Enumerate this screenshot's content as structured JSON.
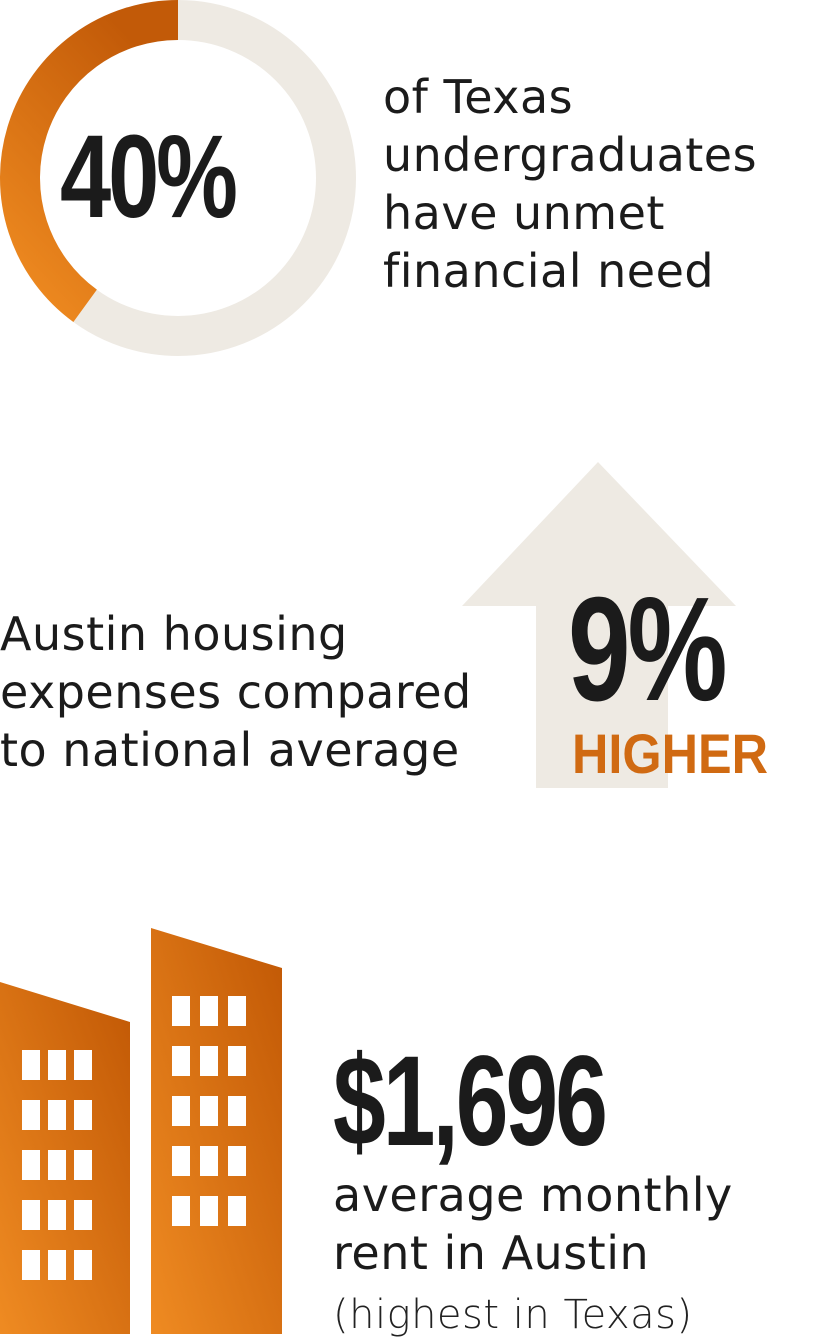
{
  "stat_unmet_need": {
    "value_label": "40%",
    "fraction": 0.4,
    "description_lines": [
      "of Texas",
      "undergraduates",
      "have unmet",
      "financial need"
    ],
    "colors": {
      "ring_fill": "#e8821f",
      "ring_fill_dark": "#c25a08",
      "ring_track": "#eeeae3"
    }
  },
  "stat_housing": {
    "description_lines": [
      "Austin housing",
      "expenses compared",
      "to national average"
    ],
    "value_label": "9%",
    "qualifier": "HIGHER",
    "icon": "arrow-up-icon",
    "colors": {
      "arrow": "#eeeae3",
      "qualifier": "#d06a12"
    }
  },
  "stat_rent": {
    "value_label": "$1,696",
    "description_lines": [
      "average monthly",
      "rent in Austin"
    ],
    "note": "(highest in Texas)",
    "icon": "buildings-icon",
    "colors": {
      "building_light": "#ee8a23",
      "building_dark": "#c45a06",
      "windows": "#ffffff"
    }
  }
}
